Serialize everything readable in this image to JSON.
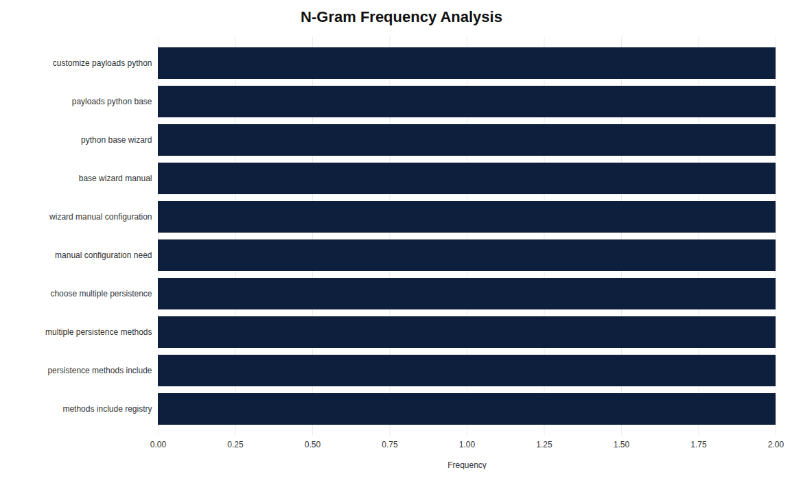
{
  "chart_data": {
    "type": "bar",
    "orientation": "horizontal",
    "title": "N-Gram Frequency Analysis",
    "categories": [
      "methods include registry",
      "persistence methods include",
      "multiple persistence methods",
      "choose multiple persistence",
      "manual configuration need",
      "wizard manual configuration",
      "base wizard manual",
      "python base wizard",
      "payloads python base",
      "customize payloads python"
    ],
    "values": [
      2.0,
      2.0,
      2.0,
      2.0,
      2.0,
      2.0,
      2.0,
      2.0,
      2.0,
      2.0
    ],
    "color": "#0d1f3c",
    "xlabel": "Frequency",
    "xlim": [
      0,
      2.0
    ],
    "xticks": [
      {
        "value": 0.0,
        "label": "0.00"
      },
      0.25,
      {
        "value": 0.5,
        "label": "0.50"
      },
      0.75,
      {
        "value": 1.0,
        "label": "1.00"
      },
      1.25,
      {
        "value": 1.5,
        "label": "1.50"
      },
      1.75,
      {
        "value": 2.0,
        "label": "2.00"
      }
    ],
    "grid": true
  }
}
